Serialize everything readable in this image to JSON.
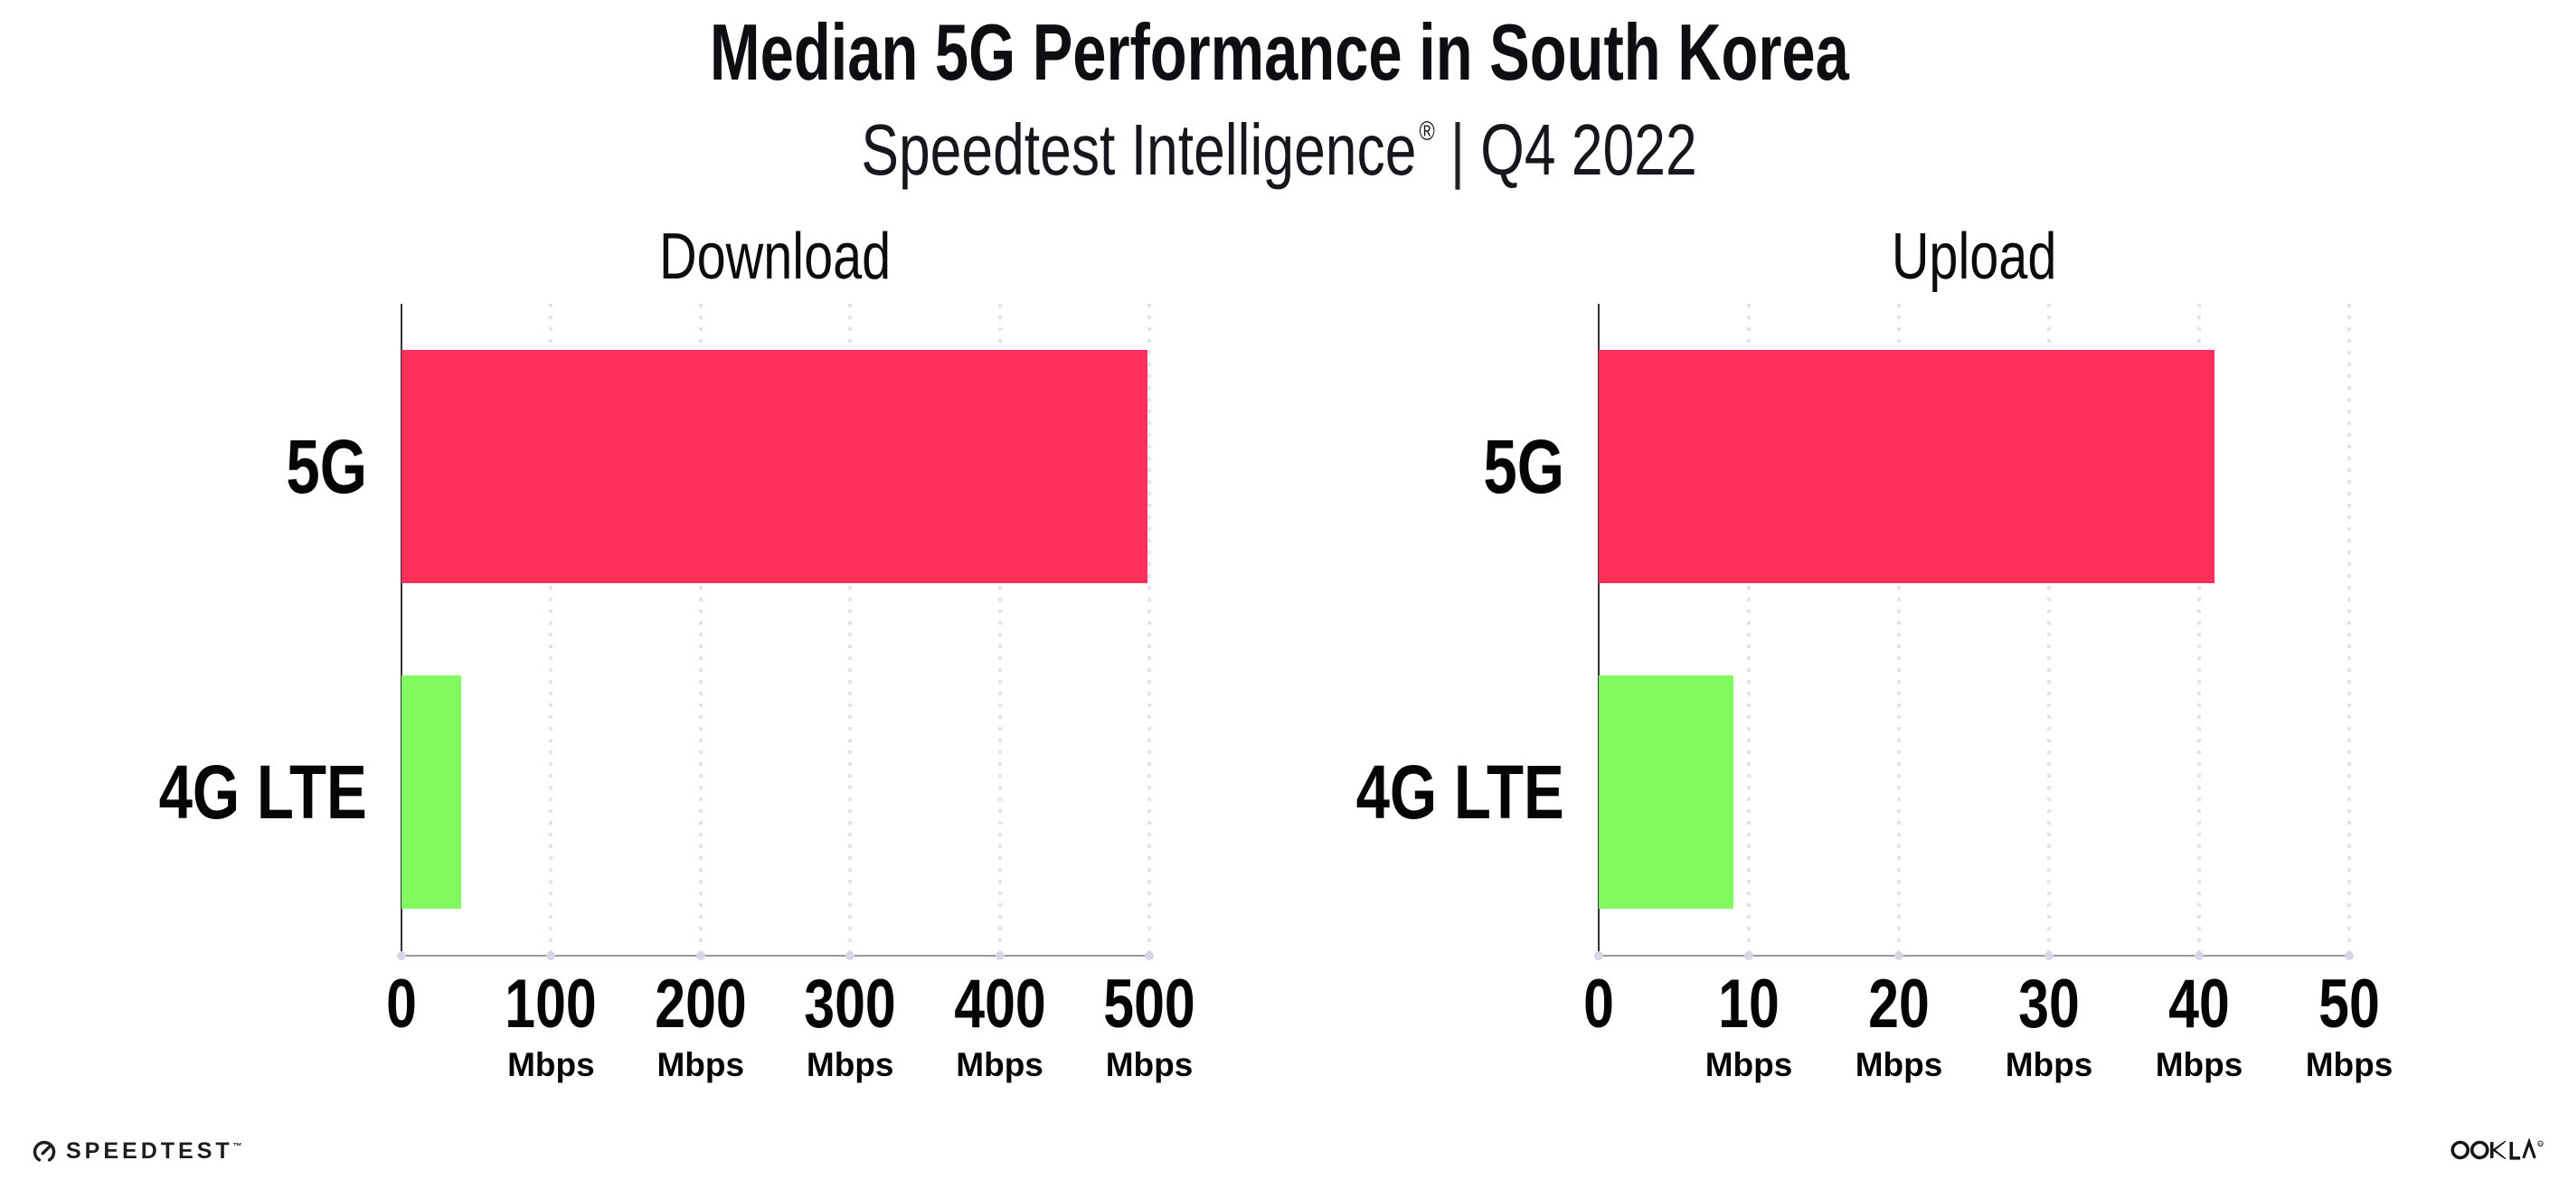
{
  "header": {
    "title": "Median 5G Performance in South Korea",
    "subtitle_brand": "Speedtest Intelligence",
    "subtitle_reg": "®",
    "subtitle_sep": "|",
    "subtitle_period": "Q4 2022"
  },
  "chart_data": [
    {
      "type": "bar",
      "orientation": "horizontal",
      "title": "Download",
      "categories": [
        "5G",
        "4G LTE"
      ],
      "values": [
        499,
        40
      ],
      "unit": "Mbps",
      "xlim": [
        0,
        500
      ],
      "xticks": [
        0,
        100,
        200,
        300,
        400,
        500
      ],
      "bar_colors": [
        "#FC2E5A",
        "#81FA60"
      ],
      "grid": "dotted-vertical",
      "legend": "none"
    },
    {
      "type": "bar",
      "orientation": "horizontal",
      "title": "Upload",
      "categories": [
        "5G",
        "4G LTE"
      ],
      "values": [
        41,
        9
      ],
      "unit": "Mbps",
      "xlim": [
        0,
        50
      ],
      "xticks": [
        0,
        10,
        20,
        30,
        40,
        50
      ],
      "bar_colors": [
        "#FC2E5A",
        "#81FA60"
      ],
      "grid": "dotted-vertical",
      "legend": "none"
    }
  ],
  "footer": {
    "speedtest_label": "SPEEDTEST",
    "speedtest_tm": "™",
    "ookla_label": "OOKLA",
    "ookla_reg": "®"
  },
  "colors": {
    "bar_5g": "#FC2E5A",
    "bar_4g_lte": "#81FA60",
    "gridline": "#E3E3F0",
    "axis_left": "#35353F",
    "axis_bottom": "#97979F",
    "text": "#0D0D12",
    "background": "#FFFFFF"
  }
}
